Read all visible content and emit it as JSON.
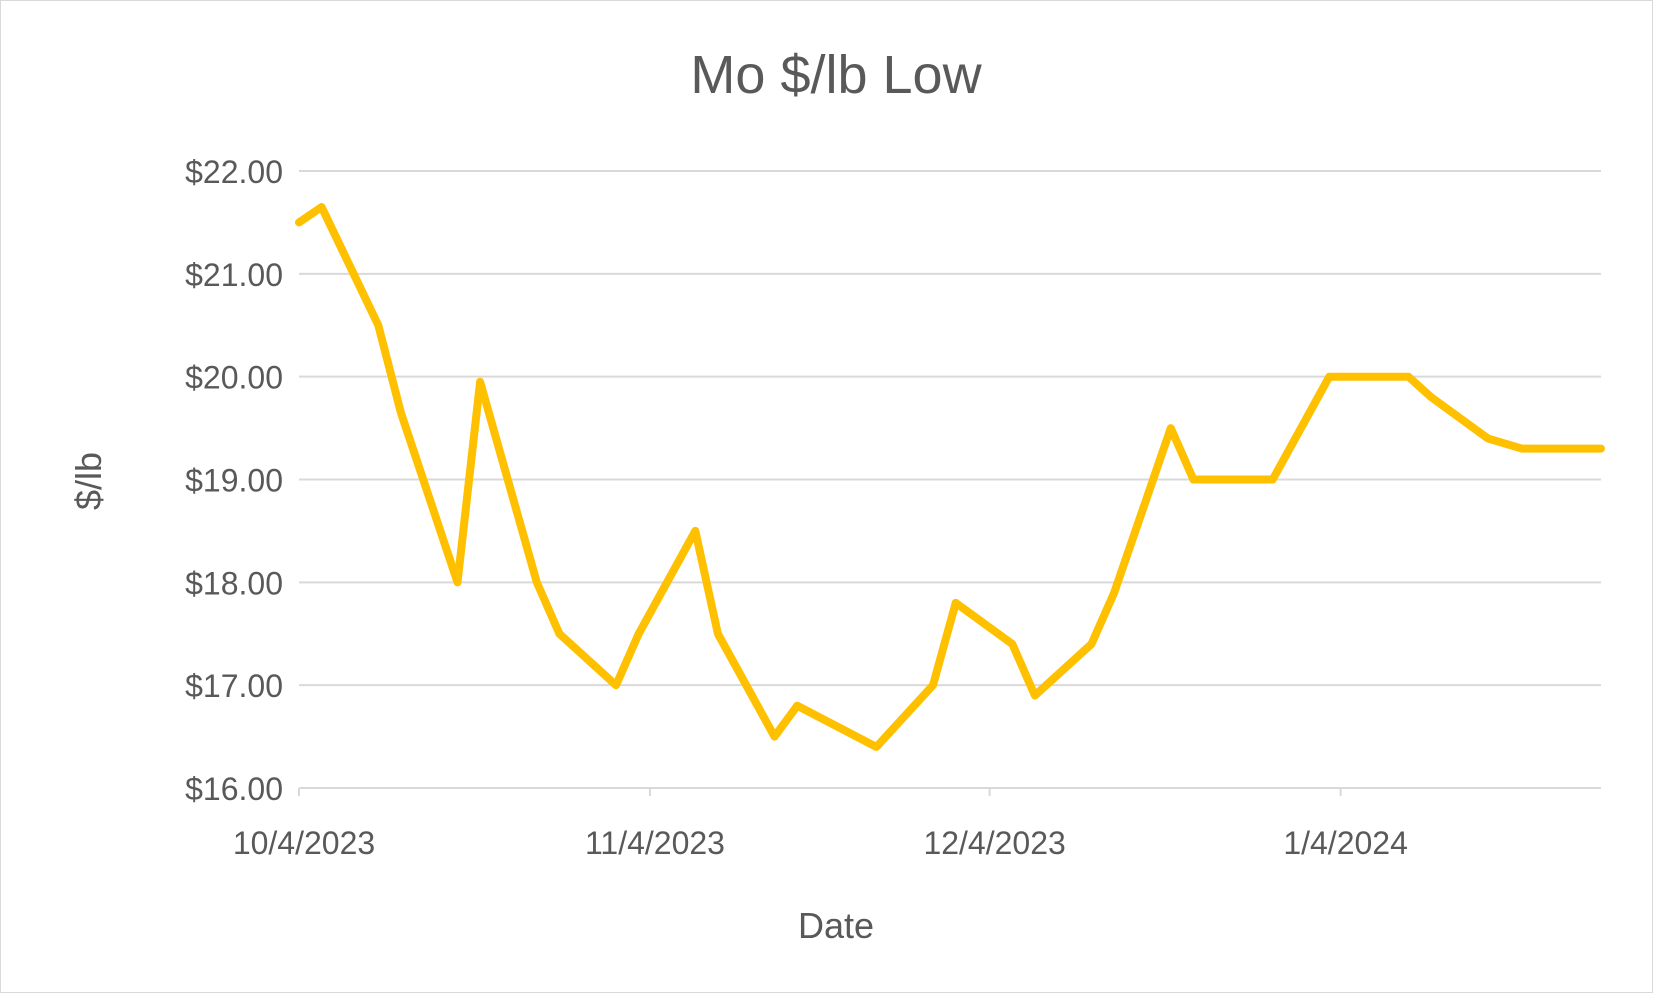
{
  "chart_data": {
    "type": "line",
    "title": "Mo $/lb Low",
    "xlabel": "Date",
    "ylabel": "$/lb",
    "ylim": [
      16,
      22
    ],
    "y_ticks": [
      "$16.00",
      "$17.00",
      "$18.00",
      "$19.00",
      "$20.00",
      "$21.00",
      "$22.00"
    ],
    "x_ticks": [
      "10/4/2023",
      "11/4/2023",
      "12/4/2023",
      "1/4/2024"
    ],
    "xlim": [
      "2023-10-04",
      "2024-01-27"
    ],
    "grid": "horizontal",
    "legend": "none",
    "color": "#FFC000",
    "series": [
      {
        "x": [
          "2023-10-04",
          "2023-10-06",
          "2023-10-11",
          "2023-10-13",
          "2023-10-18",
          "2023-10-20",
          "2023-10-25",
          "2023-10-27",
          "2023-11-01",
          "2023-11-03",
          "2023-11-08",
          "2023-11-10",
          "2023-11-15",
          "2023-11-17",
          "2023-11-24",
          "2023-11-29",
          "2023-12-01",
          "2023-12-06",
          "2023-12-08",
          "2023-12-13",
          "2023-12-15",
          "2023-12-20",
          "2023-12-22",
          "2023-12-29",
          "2024-01-03",
          "2024-01-10",
          "2024-01-12",
          "2024-01-17",
          "2024-01-20",
          "2024-01-27"
        ],
        "y": [
          21.5,
          21.65,
          20.5,
          19.65,
          18.0,
          19.95,
          18.0,
          17.5,
          17.0,
          17.5,
          18.5,
          17.5,
          16.5,
          16.8,
          16.4,
          17.0,
          17.8,
          17.4,
          16.9,
          17.4,
          17.9,
          19.5,
          19.0,
          19.0,
          20.0,
          20.0,
          19.8,
          19.4,
          19.3,
          19.3
        ]
      }
    ]
  }
}
